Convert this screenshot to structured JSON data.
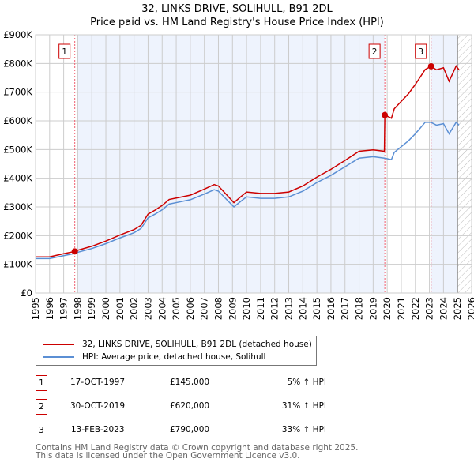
{
  "title": "32, LINKS DRIVE, SOLIHULL, B91 2DL",
  "subtitle": "Price paid vs. HM Land Registry's House Price Index (HPI)",
  "chart_data": {
    "type": "line",
    "xlim": [
      1995,
      2026
    ],
    "ylim": [
      0,
      900000
    ],
    "yticks": [
      {
        "v": 0,
        "label": "£0"
      },
      {
        "v": 100000,
        "label": "£100K"
      },
      {
        "v": 200000,
        "label": "£200K"
      },
      {
        "v": 300000,
        "label": "£300K"
      },
      {
        "v": 400000,
        "label": "£400K"
      },
      {
        "v": 500000,
        "label": "£500K"
      },
      {
        "v": 600000,
        "label": "£600K"
      },
      {
        "v": 700000,
        "label": "£700K"
      },
      {
        "v": 800000,
        "label": "£800K"
      },
      {
        "v": 900000,
        "label": "£900K"
      }
    ],
    "xticks": [
      "1995",
      "1996",
      "1997",
      "1998",
      "1999",
      "2000",
      "2001",
      "2002",
      "2003",
      "2004",
      "2005",
      "2006",
      "2007",
      "2008",
      "2009",
      "2010",
      "2011",
      "2012",
      "2013",
      "2014",
      "2015",
      "2016",
      "2017",
      "2018",
      "2019",
      "2020",
      "2021",
      "2022",
      "2023",
      "2024",
      "2025",
      "2026"
    ],
    "series": [
      {
        "name": "32, LINKS DRIVE, SOLIHULL, B91 2DL (detached house)",
        "color": "#cc0000",
        "x": [
          1995,
          1996,
          1997,
          1997.8,
          1998,
          1999,
          2000,
          2001,
          2002,
          2002.5,
          2003,
          2003.5,
          2004,
          2004.5,
          2005,
          2006,
          2007,
          2007.7,
          2008,
          2008.7,
          2009.1,
          2009.6,
          2010,
          2011,
          2012,
          2013,
          2014,
          2015,
          2016,
          2017,
          2018,
          2019,
          2019.8,
          2019.83,
          2020.3,
          2020.5,
          2021,
          2021.5,
          2022,
          2022.7,
          2023.12,
          2023.5,
          2024,
          2024.4,
          2024.9,
          2025.1
        ],
        "y": [
          126000,
          126000,
          137000,
          145000,
          149000,
          163000,
          181000,
          202000,
          221000,
          236000,
          275000,
          289000,
          305000,
          326000,
          331000,
          341000,
          362000,
          378000,
          373000,
          336000,
          315000,
          336000,
          352000,
          347000,
          347000,
          352000,
          373000,
          404000,
          431000,
          462000,
          494000,
          499000,
          494000,
          620000,
          609000,
          642000,
          668000,
          694000,
          727000,
          779000,
          790000,
          778000,
          785000,
          738000,
          791000,
          778000
        ]
      },
      {
        "name": "HPI: Average price, detached house, Solihull",
        "color": "#5b8fd4",
        "x": [
          1995,
          1996,
          1997,
          1997.8,
          1998,
          1999,
          2000,
          2001,
          2002,
          2002.5,
          2003,
          2003.5,
          2004,
          2004.5,
          2005,
          2006,
          2007,
          2007.7,
          2008,
          2008.7,
          2009.1,
          2009.6,
          2010,
          2011,
          2012,
          2013,
          2014,
          2015,
          2016,
          2017,
          2018,
          2019,
          2019.8,
          2020.3,
          2020.5,
          2021,
          2021.5,
          2022,
          2022.7,
          2023.1,
          2023.5,
          2024,
          2024.4,
          2024.9,
          2025.1
        ],
        "y": [
          120000,
          120000,
          130000,
          138000,
          142000,
          155000,
          172000,
          192000,
          210000,
          225000,
          262000,
          275000,
          290000,
          310000,
          315000,
          325000,
          345000,
          360000,
          355000,
          320000,
          300000,
          320000,
          335000,
          330000,
          330000,
          335000,
          355000,
          385000,
          410000,
          440000,
          470000,
          475000,
          470000,
          465000,
          490000,
          510000,
          530000,
          555000,
          595000,
          595000,
          585000,
          590000,
          555000,
          595000,
          585000
        ]
      }
    ],
    "sales": [
      {
        "n": "1",
        "x": 1997.79,
        "y": 145000,
        "date": "17-OCT-1997",
        "price": "£145,000",
        "hpi": "5% ↑ HPI"
      },
      {
        "n": "2",
        "x": 2019.83,
        "y": 620000,
        "date": "30-OCT-2019",
        "price": "£620,000",
        "hpi": "31% ↑ HPI"
      },
      {
        "n": "3",
        "x": 2023.12,
        "y": 790000,
        "date": "13-FEB-2023",
        "price": "£790,000",
        "hpi": "33% ↑ HPI"
      }
    ],
    "shaded": [
      [
        1998,
        2019.83
      ],
      [
        2023.12,
        2025
      ]
    ],
    "hatched_from": 2025
  },
  "footer": [
    "Contains HM Land Registry data © Crown copyright and database right 2025.",
    "This data is licensed under the Open Government Licence v3.0."
  ]
}
